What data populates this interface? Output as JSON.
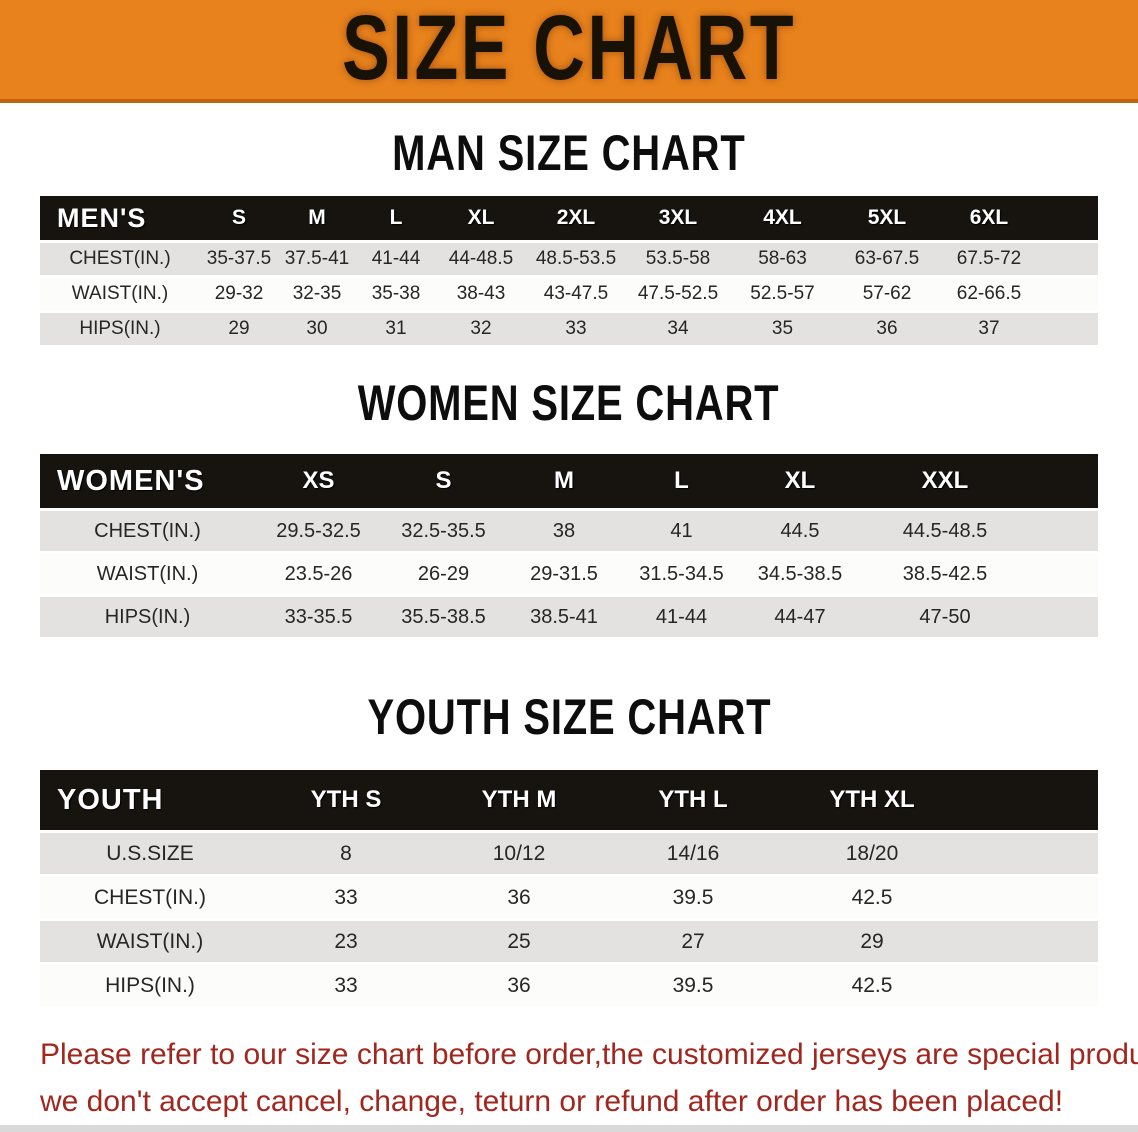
{
  "banner": {
    "title": "SIZE CHART",
    "background_color": "#e8821c",
    "title_color": "#181106"
  },
  "sections": {
    "men": {
      "heading": "MAN SIZE CHART"
    },
    "women": {
      "heading": "WOMEN SIZE CHART"
    },
    "youth": {
      "heading": "YOUTH SIZE CHART"
    }
  },
  "tables": {
    "men": {
      "corner_label": "MEN'S",
      "columns": [
        "S",
        "M",
        "L",
        "XL",
        "2XL",
        "3XL",
        "4XL",
        "5XL",
        "6XL"
      ],
      "rows": [
        {
          "label": "CHEST(IN.)",
          "values": [
            "35-37.5",
            "37.5-41",
            "41-44",
            "44-48.5",
            "48.5-53.5",
            "53.5-58",
            "58-63",
            "63-67.5",
            "67.5-72"
          ]
        },
        {
          "label": "WAIST(IN.)",
          "values": [
            "29-32",
            "32-35",
            "35-38",
            "38-43",
            "43-47.5",
            "47.5-52.5",
            "52.5-57",
            "57-62",
            "62-66.5"
          ]
        },
        {
          "label": "HIPS(IN.)",
          "values": [
            "29",
            "30",
            "31",
            "32",
            "33",
            "34",
            "35",
            "36",
            "37"
          ]
        }
      ]
    },
    "women": {
      "corner_label": "WOMEN'S",
      "columns": [
        "XS",
        "S",
        "M",
        "L",
        "XL",
        "XXL"
      ],
      "rows": [
        {
          "label": "CHEST(IN.)",
          "values": [
            "29.5-32.5",
            "32.5-35.5",
            "38",
            "41",
            "44.5",
            "44.5-48.5"
          ]
        },
        {
          "label": "WAIST(IN.)",
          "values": [
            "23.5-26",
            "26-29",
            "29-31.5",
            "31.5-34.5",
            "34.5-38.5",
            "38.5-42.5"
          ]
        },
        {
          "label": "HIPS(IN.)",
          "values": [
            "33-35.5",
            "35.5-38.5",
            "38.5-41",
            "41-44",
            "44-47",
            "47-50"
          ]
        }
      ]
    },
    "youth": {
      "corner_label": "YOUTH",
      "columns": [
        "YTH S",
        "YTH M",
        "YTH L",
        "YTH XL"
      ],
      "rows": [
        {
          "label": "U.S.SIZE",
          "values": [
            "8",
            "10/12",
            "14/16",
            "18/20"
          ]
        },
        {
          "label": "CHEST(IN.)",
          "values": [
            "33",
            "36",
            "39.5",
            "42.5"
          ]
        },
        {
          "label": "WAIST(IN.)",
          "values": [
            "23",
            "25",
            "27",
            "29"
          ]
        },
        {
          "label": "HIPS(IN.)",
          "values": [
            "33",
            "36",
            "39.5",
            "42.5"
          ]
        }
      ]
    }
  },
  "notice": {
    "text_color": "#a1271e",
    "lines": [
      "Please refer to our size chart before order,the customized jerseys are special products,",
      "we don't accept cancel, change, teturn or refund after order has been placed!"
    ]
  },
  "colors": {
    "header_bar": "#17130f",
    "row_shaded": "#e4e2e0",
    "row_plain": "#fcfcfb",
    "banner_border": "#bf6410",
    "bottom_strip": "#d9d9d9"
  }
}
